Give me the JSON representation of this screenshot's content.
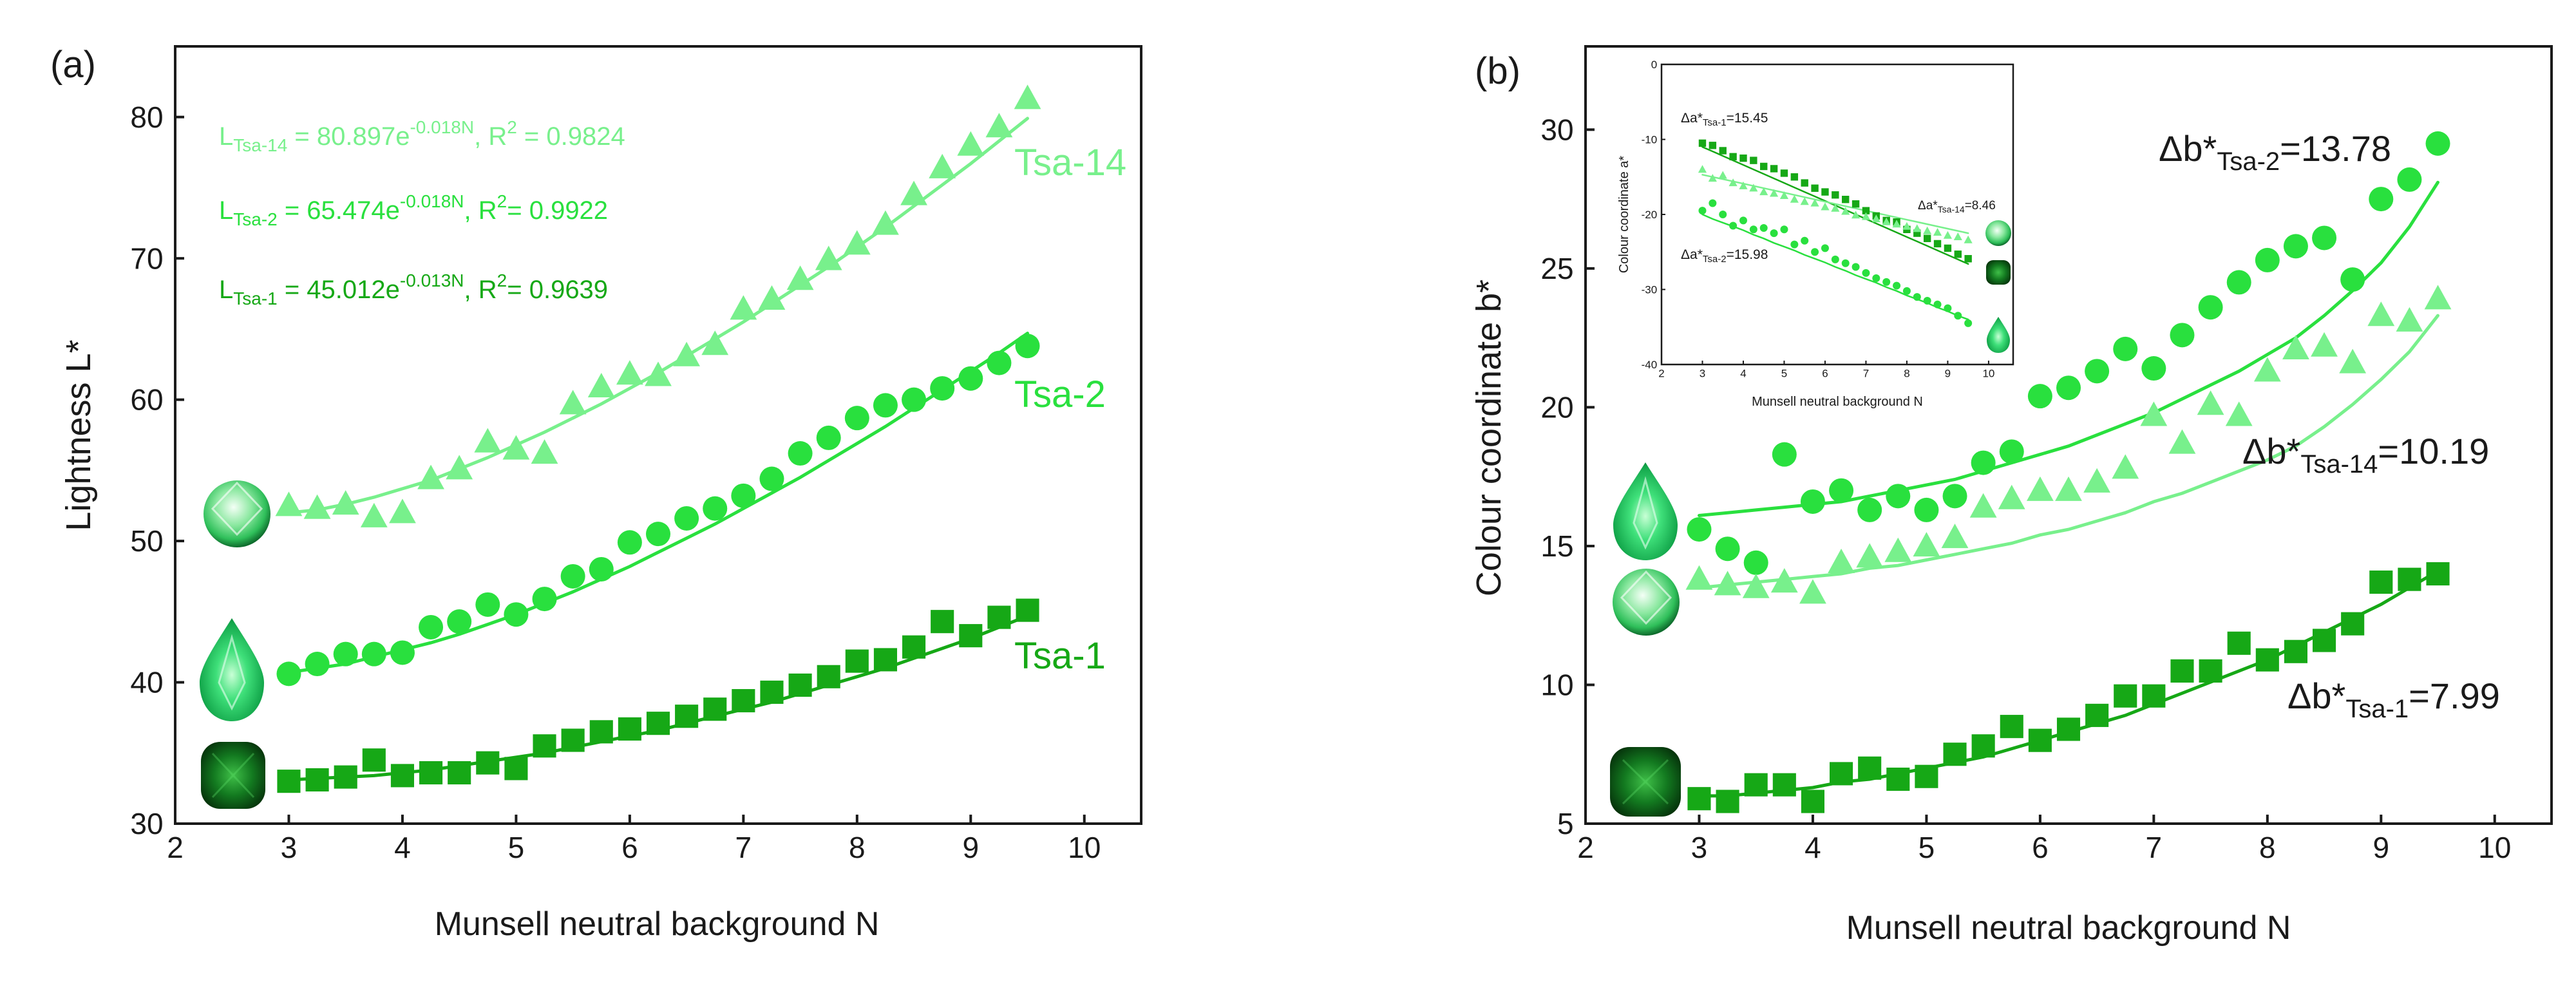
{
  "colors": {
    "tsa1": "#16a816",
    "tsa2": "#29e03e",
    "tsa14": "#78f08c",
    "axis": "#1a1a1a"
  },
  "chart_data": [
    {
      "type": "scatter",
      "panel_label": "(a)",
      "xlabel": "Munsell neutral background N",
      "ylabel": "Lightness L*",
      "xlim": [
        2,
        10.5
      ],
      "ylim": [
        30,
        85
      ],
      "xticks": [
        2,
        3,
        4,
        5,
        6,
        7,
        8,
        9,
        10
      ],
      "yticks": [
        30,
        40,
        50,
        60,
        70,
        80
      ],
      "x": [
        3.0,
        3.25,
        3.5,
        3.75,
        4.0,
        4.25,
        4.5,
        4.75,
        5.0,
        5.25,
        5.5,
        5.75,
        6.0,
        6.25,
        6.5,
        6.75,
        7.0,
        7.25,
        7.5,
        7.75,
        8.0,
        8.25,
        8.5,
        8.75,
        9.0,
        9.25,
        9.5
      ],
      "series": [
        {
          "name": "Tsa-14",
          "marker": "triangle",
          "color_key": "tsa14",
          "values": [
            52.5,
            52.3,
            52.6,
            51.7,
            52.0,
            54.4,
            55.1,
            57.0,
            56.5,
            56.2,
            59.7,
            60.9,
            61.8,
            61.7,
            63.1,
            63.9,
            66.4,
            67.1,
            68.5,
            69.9,
            71.0,
            72.4,
            74.5,
            76.4,
            78.0,
            79.3,
            81.3
          ],
          "fit": [
            52.0,
            52.2,
            52.6,
            53.1,
            53.7,
            54.3,
            55.1,
            55.9,
            56.8,
            57.7,
            58.7,
            59.7,
            60.8,
            61.9,
            63.1,
            64.3,
            65.5,
            66.8,
            68.1,
            69.4,
            70.8,
            72.2,
            73.7,
            75.2,
            76.7,
            78.3,
            79.9
          ]
        },
        {
          "name": "Tsa-2",
          "marker": "circle",
          "color_key": "tsa2",
          "values": [
            40.6,
            41.3,
            42.0,
            42.0,
            42.1,
            43.9,
            44.3,
            45.5,
            44.8,
            45.9,
            47.5,
            48.0,
            49.9,
            50.5,
            51.6,
            52.3,
            53.2,
            54.4,
            56.2,
            57.3,
            58.7,
            59.6,
            60.0,
            60.8,
            61.5,
            62.6,
            63.8
          ],
          "fit": [
            40.7,
            41.0,
            41.3,
            41.8,
            42.3,
            42.8,
            43.4,
            44.1,
            44.8,
            45.6,
            46.4,
            47.3,
            48.2,
            49.2,
            50.2,
            51.2,
            52.3,
            53.4,
            54.5,
            55.7,
            56.9,
            58.1,
            59.4,
            60.7,
            62.0,
            63.3,
            64.7
          ]
        },
        {
          "name": "Tsa-1",
          "marker": "square",
          "color_key": "tsa1",
          "values": [
            33.0,
            33.1,
            33.3,
            34.5,
            33.4,
            33.6,
            33.6,
            34.3,
            33.9,
            35.5,
            35.9,
            36.5,
            36.7,
            37.1,
            37.6,
            38.1,
            38.7,
            39.3,
            39.8,
            40.4,
            41.5,
            41.6,
            42.5,
            44.3,
            43.3,
            44.6,
            45.1
          ],
          "fit": [
            33.1,
            33.2,
            33.3,
            33.4,
            33.6,
            33.8,
            34.1,
            34.4,
            34.7,
            35.0,
            35.4,
            35.8,
            36.2,
            36.6,
            37.1,
            37.6,
            38.1,
            38.6,
            39.2,
            39.8,
            40.4,
            41.0,
            41.7,
            42.4,
            43.1,
            43.9,
            44.7
          ]
        }
      ],
      "series_labels": [
        "Tsa-14",
        "Tsa-2",
        "Tsa-1"
      ],
      "equations": [
        {
          "color_key": "tsa14",
          "lhs": "L",
          "sub": "Tsa-14",
          "mid": " = 80.897e",
          "sup": "-0.018N",
          "tail": ", R",
          "r2sup": "2",
          "r2": " = 0.9824"
        },
        {
          "color_key": "tsa2",
          "lhs": "L",
          "sub": "Tsa-2",
          "mid": " = 65.474e",
          "sup": "-0.018N",
          "tail": ",   R",
          "r2sup": "2",
          "r2": "= 0.9922"
        },
        {
          "color_key": "tsa1",
          "lhs": "L",
          "sub": "Tsa-1",
          "mid": " = 45.012e",
          "sup": "-0.013N",
          "tail": ", R",
          "r2sup": "2",
          "r2": "= 0.9639"
        }
      ]
    },
    {
      "type": "scatter",
      "panel_label": "(b)",
      "xlabel": "Munsell neutral background N",
      "ylabel": "Colour coordinate b*",
      "xlim": [
        2,
        10.5
      ],
      "ylim": [
        5,
        33
      ],
      "xticks": [
        2,
        3,
        4,
        5,
        6,
        7,
        8,
        9,
        10
      ],
      "yticks": [
        5,
        10,
        15,
        20,
        25,
        30
      ],
      "x": [
        3.0,
        3.25,
        3.5,
        3.75,
        4.0,
        4.25,
        4.5,
        4.75,
        5.0,
        5.25,
        5.5,
        5.75,
        6.0,
        6.25,
        6.5,
        6.75,
        7.0,
        7.25,
        7.5,
        7.75,
        8.0,
        8.25,
        8.5,
        8.75,
        9.0,
        9.25,
        9.5
      ],
      "series": [
        {
          "name": "Tsa-2",
          "marker": "circle",
          "color_key": "tsa2",
          "values": [
            15.6,
            14.9,
            14.4,
            18.3,
            16.6,
            17.0,
            16.3,
            16.8,
            16.3,
            16.8,
            18.0,
            18.4,
            20.4,
            20.7,
            21.3,
            22.1,
            21.4,
            22.6,
            23.6,
            24.5,
            25.3,
            25.8,
            26.1,
            24.6,
            27.5,
            28.2,
            29.5
          ],
          "fit": [
            16.1,
            16.2,
            16.3,
            16.4,
            16.5,
            16.6,
            16.8,
            17.0,
            17.2,
            17.4,
            17.7,
            18.0,
            18.3,
            18.6,
            19.0,
            19.4,
            19.8,
            20.3,
            20.8,
            21.3,
            21.9,
            22.5,
            23.3,
            24.2,
            25.2,
            26.5,
            28.1
          ]
        },
        {
          "name": "Tsa-14",
          "marker": "triangle",
          "color_key": "tsa14",
          "values": [
            13.8,
            13.6,
            13.5,
            13.7,
            13.3,
            14.4,
            14.6,
            14.8,
            15.0,
            15.3,
            16.4,
            16.7,
            17.0,
            17.0,
            17.3,
            17.8,
            19.7,
            18.7,
            20.1,
            19.7,
            21.3,
            22.1,
            22.2,
            21.6,
            23.3,
            23.1,
            23.9
          ],
          "fit": [
            13.5,
            13.6,
            13.7,
            13.8,
            13.9,
            14.0,
            14.2,
            14.3,
            14.5,
            14.7,
            14.9,
            15.1,
            15.4,
            15.6,
            15.9,
            16.2,
            16.6,
            16.9,
            17.3,
            17.7,
            18.1,
            18.6,
            19.3,
            20.1,
            21.0,
            22.0,
            23.3
          ]
        },
        {
          "name": "Tsa-1",
          "marker": "square",
          "color_key": "tsa1",
          "values": [
            5.9,
            5.8,
            6.4,
            6.4,
            5.8,
            6.8,
            7.0,
            6.6,
            6.7,
            7.5,
            7.8,
            8.5,
            8.0,
            8.4,
            8.9,
            9.6,
            9.6,
            10.5,
            10.5,
            11.5,
            10.9,
            11.2,
            11.6,
            12.2,
            13.7,
            13.8,
            14.0
          ],
          "fit": [
            6.0,
            6.0,
            6.1,
            6.2,
            6.3,
            6.5,
            6.6,
            6.8,
            7.0,
            7.2,
            7.4,
            7.7,
            8.0,
            8.3,
            8.6,
            8.9,
            9.3,
            9.7,
            10.1,
            10.5,
            10.9,
            11.4,
            11.9,
            12.4,
            12.9,
            13.5,
            14.1
          ]
        }
      ],
      "annotations": [
        {
          "pre": "Δb*",
          "sub": "Tsa-2",
          "post": "=13.78"
        },
        {
          "pre": "Δb*",
          "sub": "Tsa-14",
          "post": "=10.19"
        },
        {
          "pre": "Δb*",
          "sub": "Tsa-1",
          "post": "=7.99"
        }
      ]
    },
    {
      "type": "scatter",
      "panel_label": "inset",
      "xlabel": "Munsell neutral background N",
      "ylabel": "Colour coordinate a*",
      "xlim": [
        2,
        10.6
      ],
      "ylim": [
        -40,
        0
      ],
      "xticks": [
        2,
        3,
        4,
        5,
        6,
        7,
        8,
        9,
        10
      ],
      "yticks": [
        -40,
        -30,
        -20,
        -10,
        0
      ],
      "x": [
        3.0,
        3.25,
        3.5,
        3.75,
        4.0,
        4.25,
        4.5,
        4.75,
        5.0,
        5.25,
        5.5,
        5.75,
        6.0,
        6.25,
        6.5,
        6.75,
        7.0,
        7.25,
        7.5,
        7.75,
        8.0,
        8.25,
        8.5,
        8.75,
        9.0,
        9.25,
        9.5
      ],
      "series": [
        {
          "name": "Tsa-1",
          "marker": "square",
          "color_key": "tsa1",
          "values": [
            -10.5,
            -10.8,
            -11.5,
            -12.3,
            -12.5,
            -12.8,
            -13.6,
            -13.9,
            -14.5,
            -15.0,
            -15.8,
            -16.5,
            -17.0,
            -17.4,
            -18.0,
            -18.6,
            -19.5,
            -20.2,
            -20.8,
            -21.0,
            -22.0,
            -22.5,
            -23.2,
            -23.9,
            -24.5,
            -25.3,
            -25.9
          ],
          "fit": [
            -11.0,
            -11.6,
            -12.2,
            -12.8,
            -13.4,
            -14.0,
            -14.6,
            -15.2,
            -15.8,
            -16.4,
            -17.0,
            -17.6,
            -18.2,
            -18.8,
            -19.4,
            -20.0,
            -20.6,
            -21.2,
            -21.8,
            -22.4,
            -23.0,
            -23.6,
            -24.2,
            -24.8,
            -25.4,
            -26.0,
            -26.6
          ]
        },
        {
          "name": "Tsa-14",
          "marker": "triangle",
          "color_key": "tsa14",
          "values": [
            -14.0,
            -15.2,
            -14.8,
            -15.8,
            -16.2,
            -16.5,
            -17.0,
            -17.2,
            -17.5,
            -18.0,
            -18.3,
            -18.5,
            -19.0,
            -19.2,
            -19.6,
            -20.1,
            -20.3,
            -20.6,
            -21.0,
            -21.3,
            -21.6,
            -21.9,
            -22.2,
            -22.4,
            -22.8,
            -23.0,
            -23.4
          ],
          "fit": [
            -14.7,
            -15.0,
            -15.3,
            -15.6,
            -15.9,
            -16.2,
            -16.5,
            -16.8,
            -17.1,
            -17.4,
            -17.7,
            -18.0,
            -18.3,
            -18.6,
            -18.9,
            -19.2,
            -19.5,
            -19.8,
            -20.1,
            -20.4,
            -20.7,
            -21.0,
            -21.3,
            -21.6,
            -21.9,
            -22.2,
            -22.5
          ]
        },
        {
          "name": "Tsa-2",
          "marker": "circle",
          "color_key": "tsa2",
          "values": [
            -19.5,
            -18.5,
            -20.0,
            -21.5,
            -20.8,
            -22.0,
            -21.8,
            -22.5,
            -22.0,
            -24.0,
            -23.5,
            -25.0,
            -24.5,
            -26.0,
            -26.5,
            -27.0,
            -27.8,
            -28.5,
            -29.0,
            -29.5,
            -30.2,
            -31.0,
            -31.5,
            -32.0,
            -32.5,
            -33.5,
            -34.5
          ],
          "fit": [
            -20.0,
            -20.6,
            -21.1,
            -21.6,
            -22.1,
            -22.7,
            -23.2,
            -23.8,
            -24.3,
            -24.8,
            -25.4,
            -25.9,
            -26.4,
            -27.0,
            -27.5,
            -28.1,
            -28.6,
            -29.1,
            -29.7,
            -30.2,
            -30.8,
            -31.3,
            -31.8,
            -32.4,
            -32.9,
            -33.5,
            -34.0
          ]
        }
      ],
      "annotations": [
        {
          "pre": "Δa*",
          "sub": "Tsa-1",
          "post": "=15.45"
        },
        {
          "pre": "Δa*",
          "sub": "Tsa-14",
          "post": "=8.46"
        },
        {
          "pre": "Δa*",
          "sub": "Tsa-2",
          "post": "=15.98"
        }
      ]
    }
  ],
  "gem_icons": [
    {
      "name": "round-faceted-gem-icon",
      "shape": "round"
    },
    {
      "name": "pear-faceted-gem-icon",
      "shape": "pear"
    },
    {
      "name": "cushion-faceted-gem-icon",
      "shape": "cushion"
    }
  ]
}
